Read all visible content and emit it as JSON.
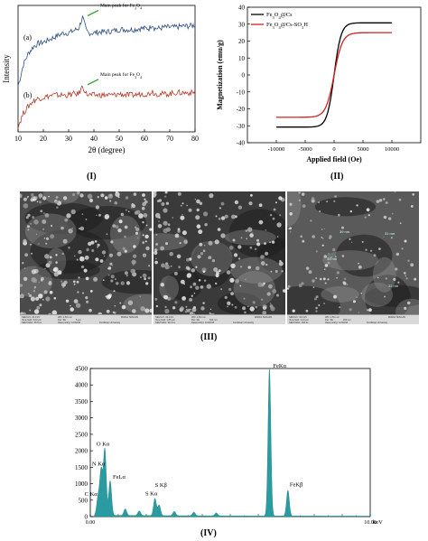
{
  "panel_labels": {
    "i": "(I)",
    "ii": "(II)",
    "iii": "(III)",
    "iv": "(IV)"
  },
  "chart_data": [
    {
      "id": "xrd",
      "type": "line",
      "xlabel": "2θ (degree)",
      "ylabel": "Intensity",
      "xlim": [
        10,
        80
      ],
      "xticks": [
        10,
        20,
        30,
        40,
        50,
        60,
        70,
        80
      ],
      "series": [
        {
          "label": "(a)",
          "color": "#2f4f7f",
          "annotation": "Main peak for Fe3O4",
          "x": [
            10,
            11,
            12,
            14,
            16,
            18,
            20,
            22,
            24,
            26,
            28,
            30,
            32,
            34,
            35.5,
            37,
            38,
            40,
            42,
            45,
            48,
            50,
            53,
            56,
            58,
            60,
            62,
            63,
            64,
            66,
            68,
            70,
            72,
            75,
            78,
            80
          ],
          "y": [
            40,
            48,
            58,
            68,
            74,
            77,
            78,
            80,
            82,
            84,
            86,
            86,
            88,
            90,
            100,
            88,
            86,
            86,
            87,
            87,
            88,
            89,
            89,
            89,
            90,
            90,
            90,
            94,
            90,
            90,
            91,
            91,
            91,
            92,
            92,
            93
          ]
        },
        {
          "label": "(b)",
          "color": "#b53a2a",
          "annotation": "Main peak for Fe3O4",
          "x": [
            10,
            11,
            12,
            14,
            16,
            18,
            20,
            22,
            24,
            26,
            28,
            30,
            32,
            34,
            35.5,
            37,
            38,
            40,
            42,
            45,
            48,
            50,
            53,
            56,
            58,
            60,
            62,
            63,
            64,
            66,
            68,
            70,
            72,
            75,
            78,
            80
          ],
          "y": [
            5,
            10,
            16,
            22,
            27,
            29,
            30,
            31,
            32,
            32,
            32,
            32,
            33,
            33,
            40,
            33,
            32,
            32,
            32,
            32,
            32,
            33,
            32,
            32,
            33,
            33,
            33,
            36,
            33,
            33,
            33,
            33,
            34,
            34,
            34,
            34
          ]
        }
      ]
    },
    {
      "id": "vsm",
      "type": "line",
      "xlabel": "Applied field (Oe)",
      "ylabel": "Magnetization (emu/g)",
      "xlim": [
        -15000,
        15000
      ],
      "ylim": [
        -40,
        40
      ],
      "xticks": [
        -10000,
        -5000,
        0,
        5000,
        10000
      ],
      "yticks": [
        -40,
        -30,
        -20,
        -10,
        0,
        10,
        20,
        30,
        40
      ],
      "legend": "top-left",
      "series": [
        {
          "name": "Fe3O4@Cs",
          "color": "#000000",
          "ms": 30.8,
          "k": 1100
        },
        {
          "name": "Fe3O4@Cs-SO3H",
          "color": "#d42020",
          "ms": 25.0,
          "k": 1300
        }
      ]
    },
    {
      "id": "edx",
      "type": "area",
      "xlabel": "keV",
      "xlim": [
        0,
        10
      ],
      "ylim": [
        0,
        4500
      ],
      "xticks": [
        0,
        10
      ],
      "xtick_labels": [
        "0.00",
        "10.00"
      ],
      "yticks": [
        0,
        500,
        1000,
        1500,
        2000,
        2500,
        3000,
        3500,
        4000,
        4500
      ],
      "color": "#2a9ba0",
      "peaks": [
        {
          "label": "C Kα",
          "e": 0.28,
          "h": 550
        },
        {
          "label": "N Kα",
          "e": 0.39,
          "h": 1350
        },
        {
          "label": "O Kα",
          "e": 0.52,
          "h": 2000
        },
        {
          "label": "FeLα",
          "e": 0.71,
          "h": 1050
        },
        {
          "label": "",
          "e": 1.25,
          "h": 200
        },
        {
          "label": "",
          "e": 1.75,
          "h": 140
        },
        {
          "label": "S Kα",
          "e": 2.31,
          "h": 520
        },
        {
          "label": "S Kβ",
          "e": 2.46,
          "h": 320
        },
        {
          "label": "",
          "e": 3.0,
          "h": 130
        },
        {
          "label": "",
          "e": 3.7,
          "h": 110
        },
        {
          "label": "",
          "e": 4.5,
          "h": 90
        },
        {
          "label": "FeKα",
          "e": 6.4,
          "h": 4450
        },
        {
          "label": "FeKβ",
          "e": 7.06,
          "h": 780
        }
      ]
    }
  ],
  "sem": {
    "micrographs": [
      {
        "name": "sem-micrograph-1",
        "bar": [
          "SEM HV: 30.0 kV",
          "WD: 4.50 mm",
          "MIRA3 TESCAN",
          "View field: 5.00 μm",
          "Det: SE",
          "5 μm",
          "SEM MAG: 55.5 kx",
          "Date(m/d/y): 12/20/18",
          "Kurdistan University"
        ]
      },
      {
        "name": "sem-micrograph-2",
        "bar": [
          "SEM HV: 30.0 kV",
          "WD: 4.50 mm",
          "MIRA3 TESCAN",
          "View field: 1.85 μm",
          "Det: SE",
          "500 nm",
          "SEM MAG: 96.4 kx",
          "Date(m/d/y): 12/20/18",
          "Kurdistan University"
        ]
      },
      {
        "name": "sem-micrograph-3",
        "annotations": [
          "39 nm",
          "31 nm",
          "35 nm",
          "32 nm"
        ],
        "bar": [
          "SEM HV: 30.0 kV",
          "WD: 4.50 mm",
          "MIRA3 TESCAN",
          "View field: 1.44 μm",
          "Det: SE",
          "200 nm",
          "SEM MAG: 150 kx",
          "Date(m/d/y): 12/20/18",
          "Kurdistan University"
        ]
      }
    ]
  }
}
